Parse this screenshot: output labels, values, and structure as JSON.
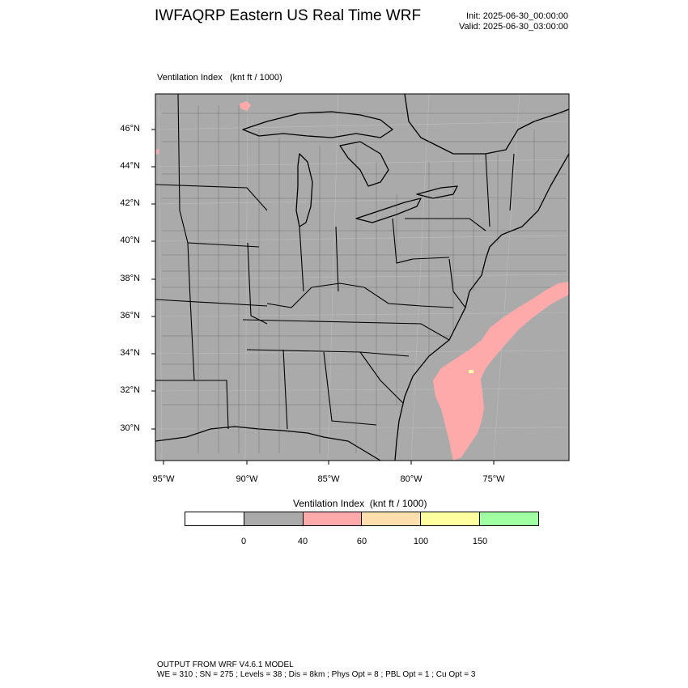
{
  "header": {
    "title": "IWFAQRP Eastern US Real Time WRF",
    "init": "Init: 2025-06-30_00:00:00",
    "valid": "Valid: 2025-06-30_03:00:00"
  },
  "panel": {
    "title": "Ventilation Index   (knt ft / 1000)",
    "land_color": "#aaaaaa",
    "water_color": "#aaaaaa",
    "highlight_color": "#ffaaaa",
    "small_yellow_color": "#ffffaa",
    "lat_labels": [
      "46°N",
      "44°N",
      "42°N",
      "40°N",
      "38°N",
      "36°N",
      "34°N",
      "32°N",
      "30°N"
    ],
    "lon_labels": [
      "95°W",
      "90°W",
      "85°W",
      "80°W",
      "75°W"
    ]
  },
  "legend": {
    "title": "Ventilation Index  (knt ft / 1000)",
    "colors": [
      "#ffffff",
      "#aaaaaa",
      "#ffaaaa",
      "#ffdead",
      "#ffffa0",
      "#a0ffa0"
    ],
    "ticks": [
      "0",
      "40",
      "60",
      "100",
      "150"
    ]
  },
  "footer": {
    "line1": "OUTPUT FROM WRF V4.6.1 MODEL",
    "line2": "WE = 310 ; SN = 275 ; Levels = 38 ; Dis = 8km ; Phys Opt = 8 ; PBL Opt = 1 ; Cu Opt = 3"
  }
}
